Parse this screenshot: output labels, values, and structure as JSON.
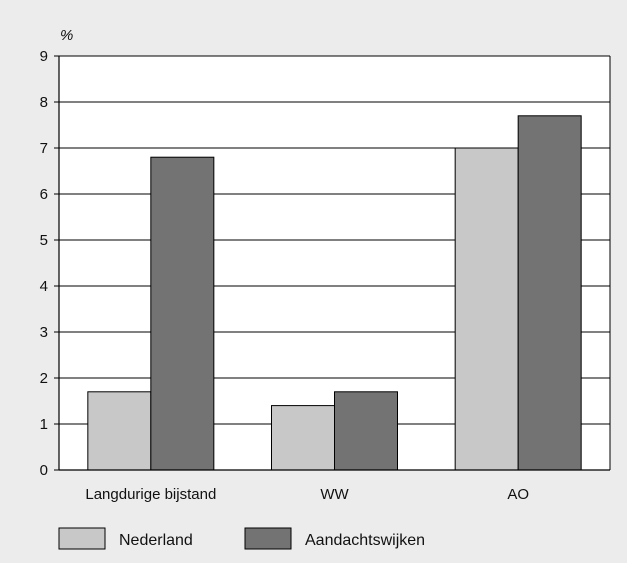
{
  "chart_data": {
    "type": "bar",
    "unit_label": "%",
    "categories": [
      "Langdurige bijstand",
      "WW",
      "AO"
    ],
    "series": [
      {
        "name": "Nederland",
        "values": [
          1.7,
          1.4,
          7.0
        ],
        "color": "#c8c8c8"
      },
      {
        "name": "Aandachtswijken",
        "values": [
          6.8,
          1.7,
          7.7
        ],
        "color": "#737373"
      }
    ],
    "ylim": [
      0,
      9
    ],
    "yticks": [
      0,
      1,
      2,
      3,
      4,
      5,
      6,
      7,
      8,
      9
    ],
    "grid": true,
    "legend_position": "bottom"
  }
}
